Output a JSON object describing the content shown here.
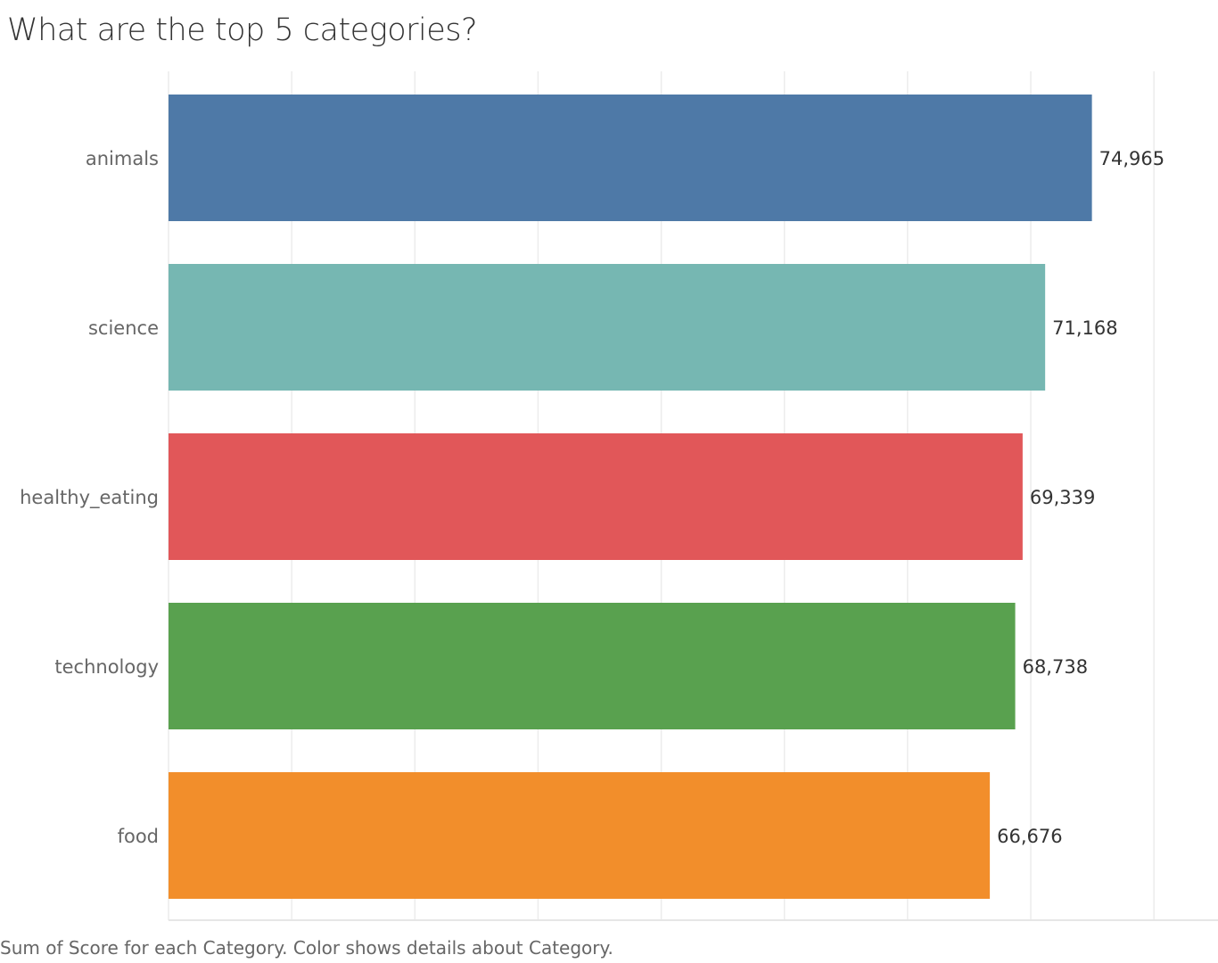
{
  "chart_data": {
    "type": "bar",
    "orientation": "horizontal",
    "title": "What are the top 5 categories?",
    "categories": [
      "animals",
      "science",
      "healthy_eating",
      "technology",
      "food"
    ],
    "values": [
      74965,
      71168,
      69339,
      68738,
      66676
    ],
    "value_labels": [
      "74,965",
      "71,168",
      "69,339",
      "68,738",
      "66,676"
    ],
    "colors": [
      "#4e79a7",
      "#76b7b2",
      "#e15759",
      "#59a14f",
      "#f28e2b"
    ],
    "xlim": [
      0,
      85200
    ],
    "x_gridline_step": 10000,
    "grid": true,
    "x_tick_labels_shown": false,
    "caption": "Sum of Score for each Category.  Color shows details about Category."
  }
}
